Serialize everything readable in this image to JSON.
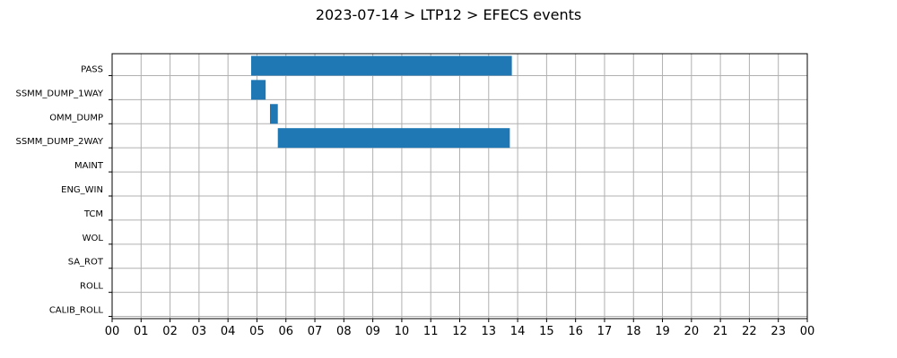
{
  "chart_data": {
    "type": "bar",
    "orientation": "horizontal",
    "title": "2023-07-14 > LTP12 > EFECS events",
    "xlabel": "",
    "ylabel": "",
    "xlim": [
      0,
      24
    ],
    "x_tick_labels": [
      "00",
      "01",
      "02",
      "03",
      "04",
      "05",
      "06",
      "07",
      "08",
      "09",
      "10",
      "11",
      "12",
      "13",
      "14",
      "15",
      "16",
      "17",
      "18",
      "19",
      "20",
      "21",
      "22",
      "23",
      "00"
    ],
    "categories": [
      "PASS",
      "SSMM_DUMP_1WAY",
      "OMM_DUMP",
      "SSMM_DUMP_2WAY",
      "MAINT",
      "ENG_WIN",
      "TCM",
      "WOL",
      "SA_ROT",
      "ROLL",
      "CALIB_ROLL"
    ],
    "intervals": [
      {
        "category": "PASS",
        "start": 4.8,
        "end": 13.8
      },
      {
        "category": "SSMM_DUMP_1WAY",
        "start": 4.8,
        "end": 5.3
      },
      {
        "category": "OMM_DUMP",
        "start": 5.45,
        "end": 5.72
      },
      {
        "category": "SSMM_DUMP_2WAY",
        "start": 5.72,
        "end": 13.73
      }
    ],
    "grid": true,
    "bar_color": "#1f77b4"
  }
}
